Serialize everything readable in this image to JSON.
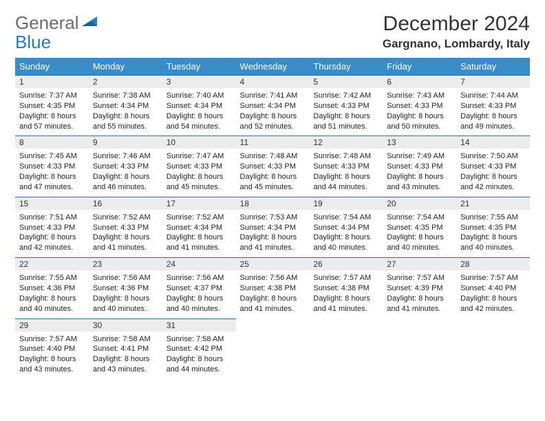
{
  "logo": {
    "part1": "General",
    "part2": "Blue"
  },
  "title": "December 2024",
  "location": "Gargnano, Lombardy, Italy",
  "colors": {
    "header_bg": "#3a8cc9",
    "header_text": "#ffffff",
    "daynum_bg": "#ececec",
    "daynum_border": "#2c6fa3",
    "logo_gray": "#6b6b6b",
    "logo_blue": "#2a7bbf"
  },
  "weekdays": [
    "Sunday",
    "Monday",
    "Tuesday",
    "Wednesday",
    "Thursday",
    "Friday",
    "Saturday"
  ],
  "weeks": [
    [
      {
        "num": "1",
        "sunrise": "7:37 AM",
        "sunset": "4:35 PM",
        "daylight": "8 hours and 57 minutes."
      },
      {
        "num": "2",
        "sunrise": "7:38 AM",
        "sunset": "4:34 PM",
        "daylight": "8 hours and 55 minutes."
      },
      {
        "num": "3",
        "sunrise": "7:40 AM",
        "sunset": "4:34 PM",
        "daylight": "8 hours and 54 minutes."
      },
      {
        "num": "4",
        "sunrise": "7:41 AM",
        "sunset": "4:34 PM",
        "daylight": "8 hours and 52 minutes."
      },
      {
        "num": "5",
        "sunrise": "7:42 AM",
        "sunset": "4:33 PM",
        "daylight": "8 hours and 51 minutes."
      },
      {
        "num": "6",
        "sunrise": "7:43 AM",
        "sunset": "4:33 PM",
        "daylight": "8 hours and 50 minutes."
      },
      {
        "num": "7",
        "sunrise": "7:44 AM",
        "sunset": "4:33 PM",
        "daylight": "8 hours and 49 minutes."
      }
    ],
    [
      {
        "num": "8",
        "sunrise": "7:45 AM",
        "sunset": "4:33 PM",
        "daylight": "8 hours and 47 minutes."
      },
      {
        "num": "9",
        "sunrise": "7:46 AM",
        "sunset": "4:33 PM",
        "daylight": "8 hours and 46 minutes."
      },
      {
        "num": "10",
        "sunrise": "7:47 AM",
        "sunset": "4:33 PM",
        "daylight": "8 hours and 45 minutes."
      },
      {
        "num": "11",
        "sunrise": "7:48 AM",
        "sunset": "4:33 PM",
        "daylight": "8 hours and 45 minutes."
      },
      {
        "num": "12",
        "sunrise": "7:48 AM",
        "sunset": "4:33 PM",
        "daylight": "8 hours and 44 minutes."
      },
      {
        "num": "13",
        "sunrise": "7:49 AM",
        "sunset": "4:33 PM",
        "daylight": "8 hours and 43 minutes."
      },
      {
        "num": "14",
        "sunrise": "7:50 AM",
        "sunset": "4:33 PM",
        "daylight": "8 hours and 42 minutes."
      }
    ],
    [
      {
        "num": "15",
        "sunrise": "7:51 AM",
        "sunset": "4:33 PM",
        "daylight": "8 hours and 42 minutes."
      },
      {
        "num": "16",
        "sunrise": "7:52 AM",
        "sunset": "4:33 PM",
        "daylight": "8 hours and 41 minutes."
      },
      {
        "num": "17",
        "sunrise": "7:52 AM",
        "sunset": "4:34 PM",
        "daylight": "8 hours and 41 minutes."
      },
      {
        "num": "18",
        "sunrise": "7:53 AM",
        "sunset": "4:34 PM",
        "daylight": "8 hours and 41 minutes."
      },
      {
        "num": "19",
        "sunrise": "7:54 AM",
        "sunset": "4:34 PM",
        "daylight": "8 hours and 40 minutes."
      },
      {
        "num": "20",
        "sunrise": "7:54 AM",
        "sunset": "4:35 PM",
        "daylight": "8 hours and 40 minutes."
      },
      {
        "num": "21",
        "sunrise": "7:55 AM",
        "sunset": "4:35 PM",
        "daylight": "8 hours and 40 minutes."
      }
    ],
    [
      {
        "num": "22",
        "sunrise": "7:55 AM",
        "sunset": "4:36 PM",
        "daylight": "8 hours and 40 minutes."
      },
      {
        "num": "23",
        "sunrise": "7:56 AM",
        "sunset": "4:36 PM",
        "daylight": "8 hours and 40 minutes."
      },
      {
        "num": "24",
        "sunrise": "7:56 AM",
        "sunset": "4:37 PM",
        "daylight": "8 hours and 40 minutes."
      },
      {
        "num": "25",
        "sunrise": "7:56 AM",
        "sunset": "4:38 PM",
        "daylight": "8 hours and 41 minutes."
      },
      {
        "num": "26",
        "sunrise": "7:57 AM",
        "sunset": "4:38 PM",
        "daylight": "8 hours and 41 minutes."
      },
      {
        "num": "27",
        "sunrise": "7:57 AM",
        "sunset": "4:39 PM",
        "daylight": "8 hours and 41 minutes."
      },
      {
        "num": "28",
        "sunrise": "7:57 AM",
        "sunset": "4:40 PM",
        "daylight": "8 hours and 42 minutes."
      }
    ],
    [
      {
        "num": "29",
        "sunrise": "7:57 AM",
        "sunset": "4:40 PM",
        "daylight": "8 hours and 43 minutes."
      },
      {
        "num": "30",
        "sunrise": "7:58 AM",
        "sunset": "4:41 PM",
        "daylight": "8 hours and 43 minutes."
      },
      {
        "num": "31",
        "sunrise": "7:58 AM",
        "sunset": "4:42 PM",
        "daylight": "8 hours and 44 minutes."
      },
      null,
      null,
      null,
      null
    ]
  ],
  "labels": {
    "sunrise": "Sunrise: ",
    "sunset": "Sunset: ",
    "daylight": "Daylight: "
  }
}
